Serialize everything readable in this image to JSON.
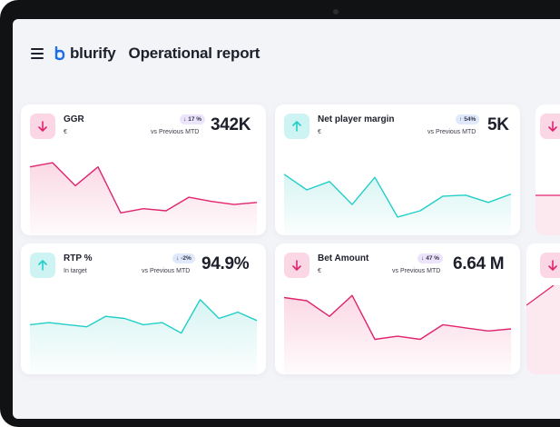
{
  "header": {
    "logo_text": "blurify",
    "page_title": "Operational report"
  },
  "cards": [
    {
      "title": "GGR",
      "subtitle": "€",
      "badge": "17 %",
      "badge_dir": "down",
      "badge_color": "#ece4fb",
      "comparison": "vs Previous MTD",
      "value": "342K",
      "trend": "down",
      "trend_color": "#e0246e",
      "series": [
        62,
        66,
        44,
        62,
        18,
        22,
        20,
        33,
        29,
        26,
        28
      ]
    },
    {
      "title": "Net player margin",
      "subtitle": "€",
      "badge": "54%",
      "badge_dir": "up",
      "badge_color": "#dfe9fb",
      "comparison": "vs Previous MTD",
      "value": "5K",
      "trend": "up",
      "trend_color": "#22cfc8",
      "series": [
        55,
        40,
        48,
        26,
        52,
        14,
        20,
        34,
        35,
        28,
        36
      ]
    },
    {
      "title": "RTP %",
      "subtitle": "In target",
      "badge": "-2%",
      "badge_dir": "down",
      "badge_color": "#dfe9fb",
      "comparison": "vs Previous MTD",
      "value": "94.9%",
      "trend": "up",
      "trend_color": "#22cfc8",
      "series": [
        44,
        46,
        44,
        42,
        52,
        50,
        44,
        46,
        36,
        68,
        50,
        56,
        48
      ]
    },
    {
      "title": "Bet Amount",
      "subtitle": "€",
      "badge": "47 %",
      "badge_dir": "down",
      "badge_color": "#ece4fb",
      "comparison": "vs Previous MTD",
      "value": "6.64 M",
      "trend": "down",
      "trend_color": "#e0246e",
      "series": [
        70,
        67,
        52,
        72,
        30,
        33,
        30,
        44,
        41,
        38,
        40
      ]
    }
  ],
  "partial_cards": [
    {
      "trend": "down"
    },
    {
      "trend": "down"
    }
  ]
}
